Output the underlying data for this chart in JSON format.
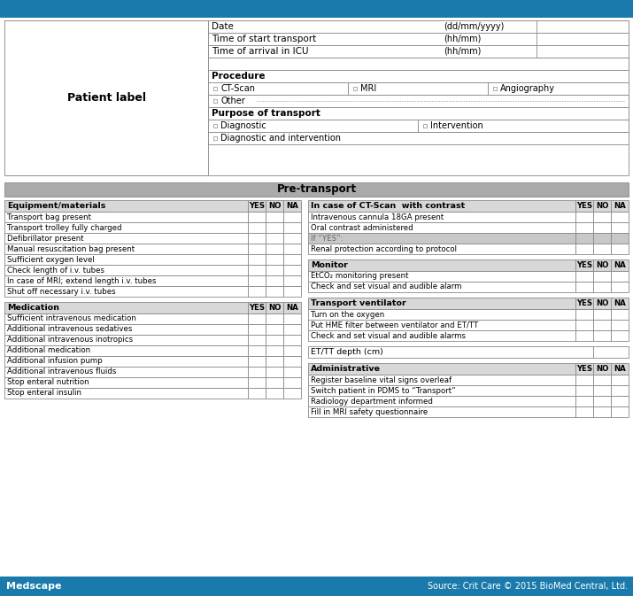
{
  "title_bar_color": "#1a7aab",
  "footer_bar_color": "#1a7aab",
  "footer_text_left": "Medscape",
  "footer_text_right": "Source: Crit Care © 2015 BioMed Central, Ltd.",
  "pre_transport_header": "Pre-transport",
  "patient_label": "Patient label",
  "border_color": "#888888",
  "header_row_bg": "#d8d8d8",
  "grey_cell_bg": "#c8c8c8",
  "left_tables": [
    {
      "header": "Equipment/materials",
      "cols": [
        "YES",
        "NO",
        "NA"
      ],
      "rows": [
        "Transport bag present",
        "Transport trolley fully charged",
        "Defibrillator present",
        "Manual resuscitation bag present",
        "Sufficient oxygen level",
        "Check length of i.v. tubes",
        "In case of MRI; extend length i.v. tubes",
        "Shut off necessary i.v. tubes"
      ]
    },
    {
      "header": "Medication",
      "cols": [
        "YES",
        "NO",
        "NA"
      ],
      "rows": [
        "Sufficient intravenous medication",
        "Additional intravenous sedatives",
        "Additional intravenous inotropics",
        "Additional medication",
        "Additional infusion pump",
        "Additional intravenous fluids",
        "Stop enteral nutrition",
        "Stop enteral insulin"
      ]
    }
  ],
  "right_tables": [
    {
      "header": "In case of CT-Scan  with contrast",
      "cols": [
        "YES",
        "NO",
        "NA"
      ],
      "rows": [
        "Intravenous cannula 18GA present",
        "Oral contrast administered",
        "If “YES”:",
        "Renal protection according to protocol"
      ],
      "grey_rows": [
        2
      ]
    },
    {
      "header": "Monitor",
      "cols": [
        "YES",
        "NO",
        "NA"
      ],
      "rows": [
        "EtCO₂ monitoring present",
        "Check and set visual and audible alarm"
      ],
      "grey_rows": []
    },
    {
      "header": "Transport ventilator",
      "cols": [
        "YES",
        "NO",
        "NA"
      ],
      "rows": [
        "Turn on the oxygen",
        "Put HME filter between ventilator and ET/TT",
        "Check and set visual and audible alarms"
      ],
      "grey_rows": []
    },
    {
      "header": "ET/TT depth (cm)",
      "cols": [],
      "rows": [],
      "grey_rows": [],
      "special": "single_row"
    },
    {
      "header": "Administrative",
      "cols": [
        "YES",
        "NO",
        "NA"
      ],
      "rows": [
        "Register baseline vital signs overleaf",
        "Switch patient in PDMS to “Transport”",
        "Radiology department informed",
        "Fill in MRI safety questionnaire"
      ],
      "grey_rows": []
    }
  ]
}
